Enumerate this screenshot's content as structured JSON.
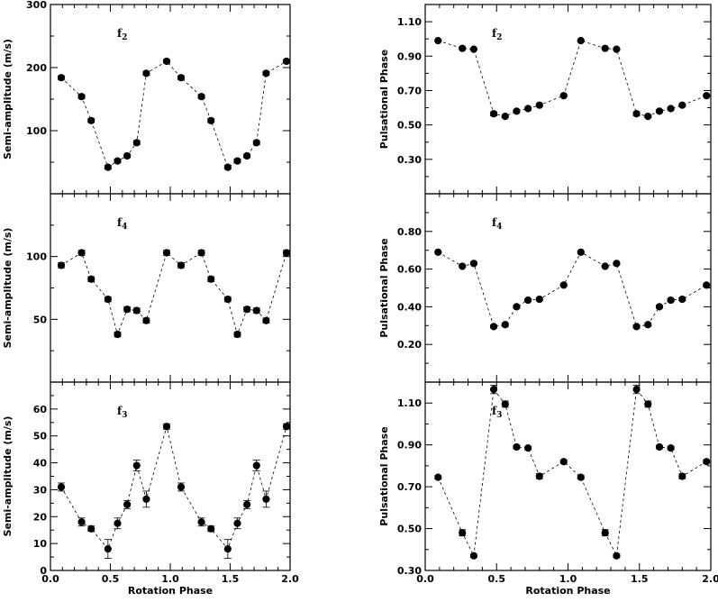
{
  "chart_data": [
    {
      "type": "scatter",
      "panel_label": "f",
      "panel_sub": "2",
      "ylabel": "Semi-amplitude (m/s)",
      "xlabel": "",
      "xlim": [
        0.0,
        2.0
      ],
      "ylim": [
        0,
        300
      ],
      "yticks": [
        100,
        200,
        300
      ],
      "ytick_labels": [
        "100",
        "200",
        "300"
      ],
      "x": [
        0.09,
        0.26,
        0.34,
        0.48,
        0.56,
        0.64,
        0.72,
        0.8,
        0.97,
        1.09,
        1.26,
        1.34,
        1.48,
        1.56,
        1.64,
        1.72,
        1.8,
        1.97
      ],
      "y": [
        184,
        154,
        116,
        42,
        52,
        60,
        81,
        191,
        210,
        184,
        154,
        116,
        42,
        52,
        60,
        81,
        191,
        210
      ],
      "yerr": [
        3,
        3,
        3,
        3,
        3,
        3,
        3,
        3,
        3,
        3,
        3,
        3,
        3,
        3,
        3,
        3,
        3,
        3
      ]
    },
    {
      "type": "scatter",
      "panel_label": "f",
      "panel_sub": "2",
      "ylabel": "Pulsational Phase",
      "xlabel": "",
      "xlim": [
        0.0,
        2.0
      ],
      "ylim": [
        0.1,
        1.2
      ],
      "yticks": [
        0.3,
        0.5,
        0.7,
        0.9,
        1.1
      ],
      "ytick_labels": [
        "0.30",
        "0.50",
        "0.70",
        "0.90",
        "1.10"
      ],
      "x": [
        0.09,
        0.26,
        0.34,
        0.48,
        0.56,
        0.64,
        0.72,
        0.8,
        0.97,
        1.09,
        1.26,
        1.34,
        1.48,
        1.56,
        1.64,
        1.72,
        1.8,
        1.97
      ],
      "y": [
        0.99,
        0.945,
        0.94,
        0.565,
        0.55,
        0.58,
        0.595,
        0.615,
        0.67,
        0.99,
        0.945,
        0.94,
        0.565,
        0.55,
        0.58,
        0.595,
        0.615,
        0.67
      ],
      "yerr": [
        0.005,
        0.005,
        0.005,
        0.012,
        0.008,
        0.008,
        0.008,
        0.008,
        0.006,
        0.005,
        0.005,
        0.005,
        0.012,
        0.008,
        0.008,
        0.008,
        0.008,
        0.006
      ]
    },
    {
      "type": "scatter",
      "panel_label": "f",
      "panel_sub": "4",
      "ylabel": "Semi-amplitude (m/s)",
      "xlabel": "",
      "xlim": [
        0.0,
        2.0
      ],
      "ylim": [
        0,
        150
      ],
      "yticks": [
        50,
        100
      ],
      "ytick_labels": [
        "50",
        "100"
      ],
      "x": [
        0.09,
        0.26,
        0.34,
        0.48,
        0.56,
        0.64,
        0.72,
        0.8,
        0.97,
        1.09,
        1.26,
        1.34,
        1.48,
        1.56,
        1.64,
        1.72,
        1.8,
        1.97
      ],
      "y": [
        93,
        103,
        82,
        66,
        38,
        58,
        57,
        49,
        103,
        93,
        103,
        82,
        66,
        38,
        58,
        57,
        49,
        103
      ],
      "yerr": [
        2,
        2,
        2,
        2,
        2,
        2,
        2,
        2,
        2,
        2,
        2,
        2,
        2,
        2,
        2,
        2,
        2,
        2
      ]
    },
    {
      "type": "scatter",
      "panel_label": "f",
      "panel_sub": "4",
      "ylabel": "Pulsational Phase",
      "xlabel": "",
      "xlim": [
        0.0,
        2.0
      ],
      "ylim": [
        0.0,
        1.0
      ],
      "yticks": [
        0.2,
        0.4,
        0.6,
        0.8
      ],
      "ytick_labels": [
        "0.20",
        "0.40",
        "0.60",
        "0.80"
      ],
      "x": [
        0.09,
        0.26,
        0.34,
        0.48,
        0.56,
        0.64,
        0.72,
        0.8,
        0.97,
        1.09,
        1.26,
        1.34,
        1.48,
        1.56,
        1.64,
        1.72,
        1.8,
        1.97
      ],
      "y": [
        0.69,
        0.615,
        0.63,
        0.295,
        0.305,
        0.4,
        0.435,
        0.44,
        0.515,
        0.69,
        0.615,
        0.63,
        0.295,
        0.305,
        0.4,
        0.435,
        0.44,
        0.515
      ],
      "yerr": [
        0.005,
        0.005,
        0.006,
        0.008,
        0.008,
        0.008,
        0.008,
        0.008,
        0.006,
        0.005,
        0.005,
        0.006,
        0.008,
        0.008,
        0.008,
        0.008,
        0.008,
        0.006
      ]
    },
    {
      "type": "scatter",
      "panel_label": "f",
      "panel_sub": "3",
      "ylabel": "Semi-amplitude (m/s)",
      "xlabel": "Rotation Phase",
      "xlim": [
        0.0,
        2.0
      ],
      "ylim": [
        0,
        70
      ],
      "yticks": [
        0,
        10,
        20,
        30,
        40,
        50,
        60
      ],
      "ytick_labels": [
        "0",
        "10",
        "20",
        "30",
        "40",
        "50",
        "60"
      ],
      "xticks": [
        0.0,
        0.5,
        1.0,
        1.5,
        2.0
      ],
      "xtick_labels": [
        "0.0",
        "0.5",
        "1.0",
        "1.5",
        "2.0"
      ],
      "x": [
        0.09,
        0.26,
        0.34,
        0.48,
        0.56,
        0.64,
        0.72,
        0.8,
        0.97,
        1.09,
        1.26,
        1.34,
        1.48,
        1.56,
        1.64,
        1.72,
        1.8,
        1.97
      ],
      "y": [
        31,
        18,
        15.5,
        8,
        17.5,
        24.5,
        39,
        26.5,
        53.5,
        31,
        18,
        15.5,
        8,
        17.5,
        24.5,
        39,
        26.5,
        53.5
      ],
      "yerr": [
        1.5,
        1.5,
        1,
        3.5,
        2,
        1.5,
        2,
        3,
        1,
        1.5,
        1.5,
        1,
        3.5,
        2,
        1.5,
        2,
        3,
        1
      ]
    },
    {
      "type": "scatter",
      "panel_label": "f",
      "panel_sub": "3",
      "ylabel": "Pulsational Phase",
      "xlabel": "Rotation Phase",
      "xlim": [
        0.0,
        2.0
      ],
      "ylim": [
        0.3,
        1.2
      ],
      "yticks": [
        0.3,
        0.5,
        0.7,
        0.9,
        1.1
      ],
      "ytick_labels": [
        "0.30",
        "0.50",
        "0.70",
        "0.90",
        "1.10"
      ],
      "xticks": [
        0.0,
        0.5,
        1.0,
        1.5,
        2.0
      ],
      "xtick_labels": [
        "0.0",
        "0.5",
        "1.0",
        "1.5",
        "2.0"
      ],
      "x": [
        0.09,
        0.26,
        0.34,
        0.48,
        0.56,
        0.64,
        0.72,
        0.8,
        0.97,
        1.09,
        1.26,
        1.34,
        1.48,
        1.56,
        1.64,
        1.72,
        1.8,
        1.97
      ],
      "y": [
        0.745,
        0.48,
        0.37,
        1.165,
        1.095,
        0.89,
        0.885,
        0.75,
        0.82,
        0.745,
        0.48,
        0.37,
        1.165,
        1.095,
        0.89,
        0.885,
        0.75,
        0.82
      ],
      "yerr": [
        0.008,
        0.015,
        0.008,
        0.02,
        0.015,
        0.008,
        0.008,
        0.012,
        0.008,
        0.008,
        0.015,
        0.008,
        0.02,
        0.015,
        0.008,
        0.008,
        0.012,
        0.008
      ]
    }
  ]
}
